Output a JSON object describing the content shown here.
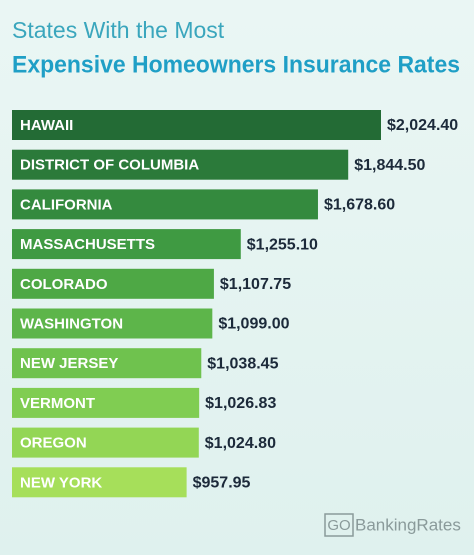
{
  "chart_data": {
    "type": "bar",
    "orientation": "horizontal",
    "title": "States With the Most",
    "subtitle": "Expensive Homeowners Insurance Rates",
    "categories": [
      "HAWAII",
      "DISTRICT OF COLUMBIA",
      "CALIFORNIA",
      "MASSACHUSETTS",
      "COLORADO",
      "WASHINGTON",
      "NEW JERSEY",
      "VERMONT",
      "OREGON",
      "NEW YORK"
    ],
    "values": [
      2024.4,
      1844.5,
      1678.6,
      1255.1,
      1107.75,
      1099.0,
      1038.45,
      1026.83,
      1024.8,
      957.95
    ],
    "value_labels": [
      "$2,024.40",
      "$1,844.50",
      "$1,678.60",
      "$1,255.10",
      "$1,107.75",
      "$1,099.00",
      "$1,038.45",
      "$1,026.83",
      "$1,024.80",
      "$957.95"
    ],
    "colors": [
      "#236b35",
      "#2b7a3a",
      "#348a3e",
      "#3f9a42",
      "#4ea845",
      "#5db54a",
      "#6fc24e",
      "#80cd52",
      "#93d655",
      "#a6df5a"
    ]
  },
  "footer": {
    "logo_box": "GO",
    "logo_text": "BankingRates"
  }
}
